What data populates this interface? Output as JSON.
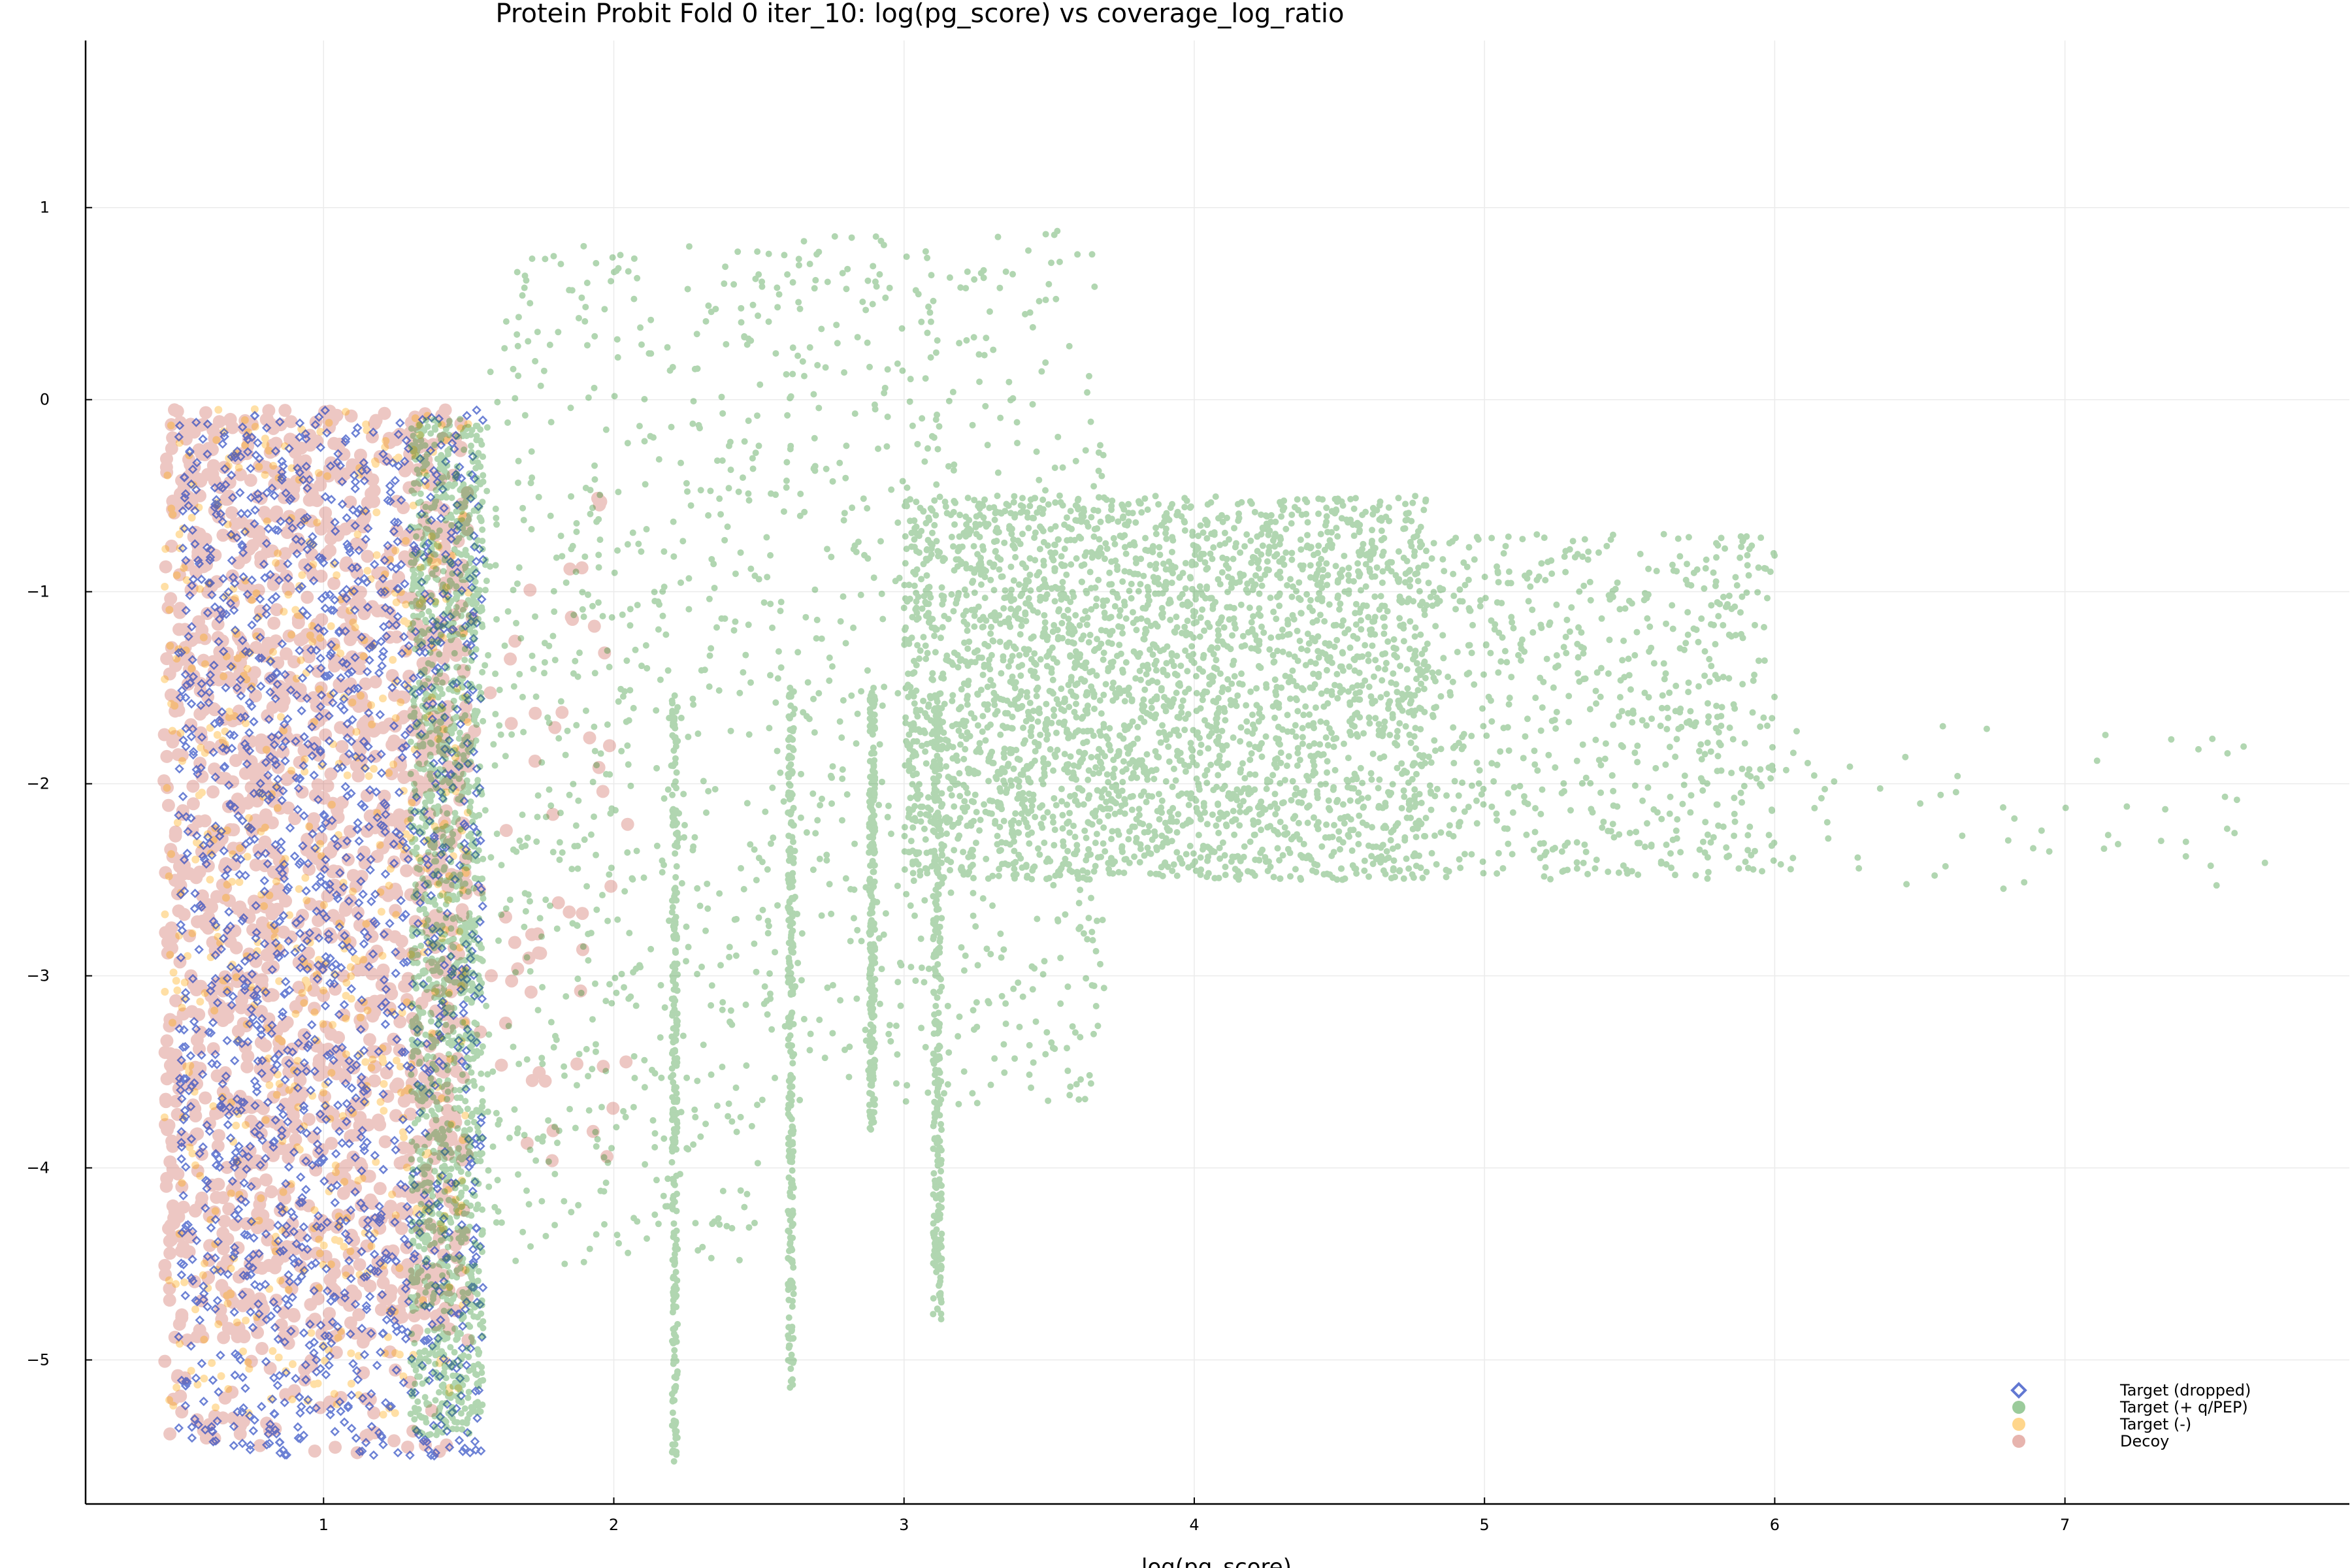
{
  "chart_data": {
    "type": "scatter",
    "title": "Protein Probit Fold 0 iter_10: log(pg_score) vs coverage_log_ratio",
    "xlabel": "log(pg_score)",
    "ylabel": "",
    "xlim": [
      0.18,
      7.98
    ],
    "ylim": [
      -5.75,
      1.87
    ],
    "xticks": [
      1,
      2,
      3,
      4,
      5,
      6,
      7
    ],
    "xtick_labels": [
      "1",
      "2",
      "3",
      "4",
      "5",
      "6",
      "7"
    ],
    "yticks": [
      1,
      0,
      -1,
      -2,
      -3,
      -4,
      -5
    ],
    "ytick_labels": [
      "1",
      "0",
      "−1",
      "−2",
      "−3",
      "−4",
      "−5"
    ],
    "grid": true,
    "legend_position": "bottom-right",
    "series": [
      {
        "name": "Decoy",
        "color": "#c0392b",
        "marker": "circle",
        "opacity": 0.28,
        "clusters": [
          {
            "x": [
              0.45,
              1.5
            ],
            "y": [
              -4.9,
              -0.05
            ],
            "density": "high"
          },
          {
            "x": [
              0.45,
              1.45
            ],
            "y": [
              -5.5,
              -4.9
            ],
            "density": "sparse"
          },
          {
            "x": [
              1.5,
              2.05
            ],
            "y": [
              -4.0,
              -0.4
            ],
            "density": "sparse"
          }
        ]
      },
      {
        "name": "Target (-)",
        "color": "#ffa500",
        "marker": "circle",
        "opacity": 0.35,
        "clusters": [
          {
            "x": [
              0.45,
              1.5
            ],
            "y": [
              -5.3,
              -0.05
            ],
            "density": "medium"
          }
        ]
      },
      {
        "name": "Target (dropped)",
        "color": "#1f3fbf",
        "marker": "diamond",
        "opacity": 0.65,
        "clusters": [
          {
            "x": [
              0.5,
              1.55
            ],
            "y": [
              -5.5,
              -0.05
            ],
            "density": "high"
          }
        ]
      },
      {
        "name": "Target (+ q/PEP)",
        "color": "#228b22",
        "marker": "circle",
        "opacity": 0.35,
        "clusters": [
          {
            "x": [
              1.3,
              1.55
            ],
            "y": [
              -5.4,
              -0.1
            ],
            "density": "high"
          },
          {
            "x": [
              1.55,
              2.5
            ],
            "y": [
              -4.5,
              0.8
            ],
            "density": "medium"
          },
          {
            "x": [
              2.5,
              3.7
            ],
            "y": [
              -3.7,
              0.9
            ],
            "density": "medium"
          },
          {
            "x": [
              3.0,
              4.8
            ],
            "y": [
              -2.5,
              -0.5
            ],
            "density": "very-high"
          },
          {
            "x": [
              4.8,
              6.0
            ],
            "y": [
              -2.5,
              -0.7
            ],
            "density": "medium"
          },
          {
            "x": [
              6.0,
              7.8
            ],
            "y": [
              -2.55,
              -1.7
            ],
            "density": "sparse"
          },
          {
            "x": [
              2.2,
              2.22
            ],
            "y": [
              -5.55,
              -1.5
            ],
            "density": "streak"
          },
          {
            "x": [
              2.6,
              2.62
            ],
            "y": [
              -5.15,
              -1.5
            ],
            "density": "streak"
          },
          {
            "x": [
              2.88,
              2.9
            ],
            "y": [
              -3.8,
              -1.5
            ],
            "density": "streak"
          },
          {
            "x": [
              3.1,
              3.13
            ],
            "y": [
              -4.8,
              -1.5
            ],
            "density": "streak"
          }
        ]
      }
    ],
    "legend_order": [
      "Target (dropped)",
      "Target (+ q/PEP)",
      "Target (-)",
      "Decoy"
    ]
  }
}
